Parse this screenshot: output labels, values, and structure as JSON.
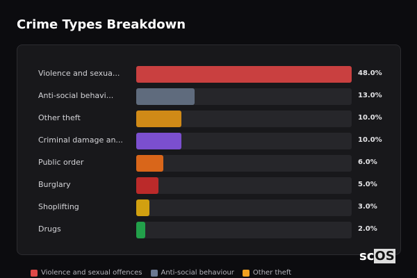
{
  "title": "Crime Types Breakdown",
  "chart_data": {
    "type": "bar",
    "orientation": "horizontal",
    "title": "Crime Types Breakdown",
    "categories": [
      "Violence and sexua...",
      "Anti-social behavi...",
      "Other theft",
      "Criminal damage an...",
      "Public order",
      "Burglary",
      "Shoplifting",
      "Drugs"
    ],
    "values": [
      48.0,
      13.0,
      10.0,
      10.0,
      6.0,
      5.0,
      3.0,
      2.0
    ],
    "value_labels": [
      "48.0%",
      "13.0%",
      "10.0%",
      "10.0%",
      "6.0%",
      "5.0%",
      "3.0%",
      "2.0%"
    ],
    "colors": [
      "#c94040",
      "#5f6b7d",
      "#d08a17",
      "#7b4fcf",
      "#d9661a",
      "#bb2a2a",
      "#d1a010",
      "#22a04a"
    ],
    "unit": "%",
    "legend": [
      {
        "label": "Violence and sexual offences",
        "color": "#e04848"
      },
      {
        "label": "Anti-social behaviour",
        "color": "#6b7891"
      },
      {
        "label": "Other theft",
        "color": "#f0a020"
      }
    ]
  },
  "logo": {
    "text_a": "sc",
    "text_b": "OS"
  }
}
